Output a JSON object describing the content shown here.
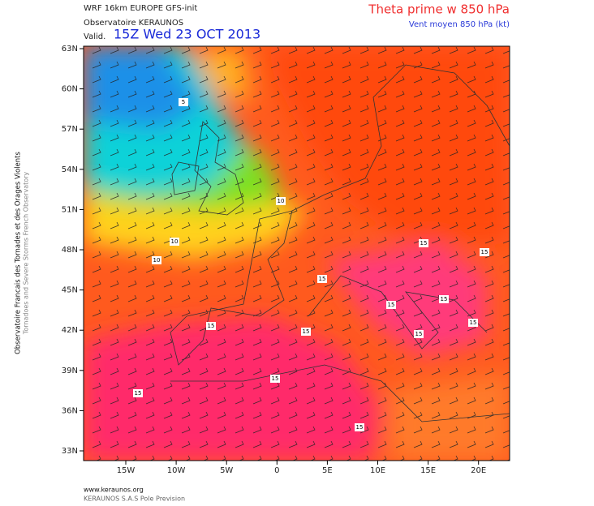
{
  "header": {
    "model": "WRF 16km EUROPE  GFS-init",
    "observatory": "Observatoire KERAUNOS",
    "valid_label": "Valid.",
    "valid_time": "15Z Wed 23 OCT 2013",
    "field": "Theta prime w 850 hPa",
    "wind": "Vent moyen 850 hPa (kt)"
  },
  "side": {
    "line1": "Observatoire Francais des Tornades et des Orages Violents",
    "line2": "Tornadoes and Severe Storms French Observatory"
  },
  "axes": {
    "lat_labels": [
      "63N",
      "60N",
      "57N",
      "54N",
      "51N",
      "48N",
      "45N",
      "42N",
      "39N",
      "36N",
      "33N"
    ],
    "lon_labels": [
      "15W",
      "10W",
      "5W",
      "0",
      "5E",
      "10E",
      "15E",
      "20E"
    ]
  },
  "contour_labels": [
    "5",
    "10",
    "10",
    "10",
    "15",
    "15",
    "15",
    "15",
    "15",
    "15",
    "15",
    "15",
    "15",
    "15",
    "15",
    "15"
  ],
  "footer": {
    "url": "www.keraunos.org",
    "company": "KERAUNOS S.A.S Pole Prevision"
  }
}
